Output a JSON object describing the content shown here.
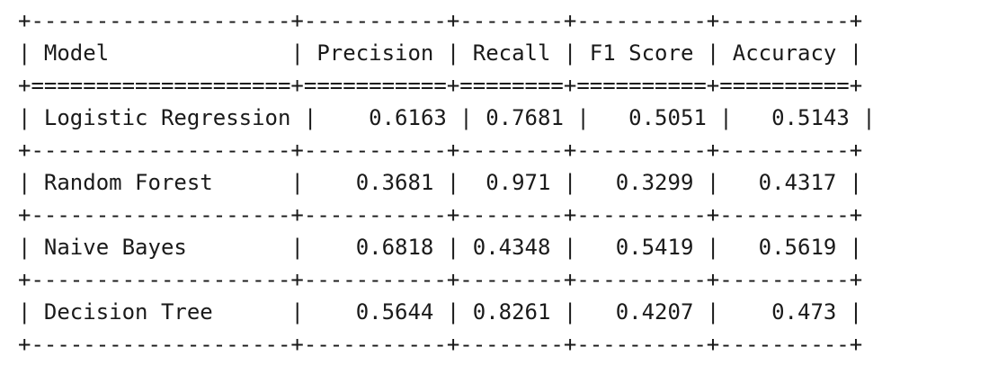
{
  "table": {
    "columns": [
      {
        "label": "Model",
        "align": "left",
        "width": 20
      },
      {
        "label": "Precision",
        "align": "right",
        "width": 11
      },
      {
        "label": "Recall",
        "align": "right",
        "width": 8
      },
      {
        "label": "F1 Score",
        "align": "right",
        "width": 10
      },
      {
        "label": "Accuracy",
        "align": "right",
        "width": 10
      }
    ],
    "rows": [
      [
        "Logistic Regression",
        "0.6163",
        "0.7681",
        "0.5051",
        "0.5143"
      ],
      [
        "Random Forest",
        "0.3681",
        "0.971",
        "0.3299",
        "0.4317"
      ],
      [
        "Naive Bayes",
        "0.6818",
        "0.4348",
        "0.5419",
        "0.5619"
      ],
      [
        "Decision Tree",
        "0.5644",
        "0.8261",
        "0.4207",
        "0.473"
      ]
    ]
  }
}
